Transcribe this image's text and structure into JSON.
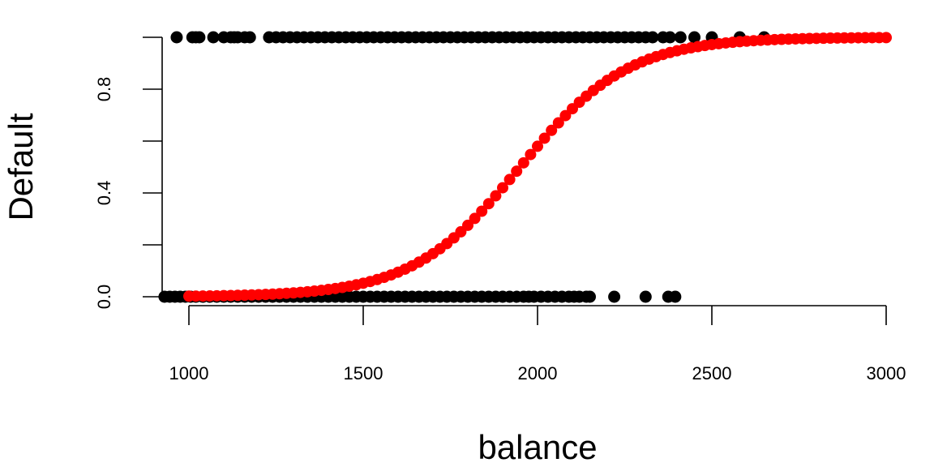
{
  "chart_data": {
    "type": "scatter",
    "xlabel": "balance",
    "ylabel": "Default",
    "xlim": [
      920,
      3010
    ],
    "ylim": [
      0,
      1
    ],
    "x_ticks": [
      1000,
      1500,
      2000,
      2500,
      3000
    ],
    "x_tick_labels": [
      "1000",
      "1500",
      "2000",
      "2500",
      "3000"
    ],
    "y_ticks": [
      0,
      0.2,
      0.4,
      0.6,
      0.8,
      1.0
    ],
    "y_tick_labels": [
      "0.0",
      "",
      "0.4",
      "",
      "0.8",
      ""
    ],
    "grid": false,
    "legend": "none",
    "series": [
      {
        "kind": "observations-default-1",
        "color": "#000000",
        "x": [
          965,
          1010,
          1020,
          1030,
          1070,
          1100,
          1120,
          1130,
          1140,
          1160,
          1175,
          1230,
          1250,
          1270,
          1290,
          1310,
          1330,
          1350,
          1370,
          1390,
          1410,
          1430,
          1450,
          1470,
          1490,
          1510,
          1530,
          1550,
          1570,
          1590,
          1610,
          1630,
          1650,
          1670,
          1690,
          1710,
          1730,
          1750,
          1770,
          1790,
          1810,
          1830,
          1850,
          1870,
          1890,
          1910,
          1930,
          1950,
          1970,
          1990,
          2010,
          2030,
          2050,
          2070,
          2090,
          2110,
          2130,
          2150,
          2170,
          2190,
          2210,
          2230,
          2250,
          2270,
          2290,
          2310,
          2330,
          2360,
          2380,
          2410,
          2450,
          2500,
          2580,
          2650
        ],
        "y": [
          1,
          1,
          1,
          1,
          1,
          1,
          1,
          1,
          1,
          1,
          1,
          1,
          1,
          1,
          1,
          1,
          1,
          1,
          1,
          1,
          1,
          1,
          1,
          1,
          1,
          1,
          1,
          1,
          1,
          1,
          1,
          1,
          1,
          1,
          1,
          1,
          1,
          1,
          1,
          1,
          1,
          1,
          1,
          1,
          1,
          1,
          1,
          1,
          1,
          1,
          1,
          1,
          1,
          1,
          1,
          1,
          1,
          1,
          1,
          1,
          1,
          1,
          1,
          1,
          1,
          1,
          1,
          1,
          1,
          1,
          1,
          1,
          1,
          1
        ]
      },
      {
        "kind": "observations-default-0",
        "color": "#000000",
        "x": [
          930,
          945,
          960,
          975,
          990,
          1005,
          1020,
          1040,
          1060,
          1080,
          1100,
          1120,
          1140,
          1160,
          1180,
          1200,
          1220,
          1240,
          1260,
          1280,
          1300,
          1320,
          1340,
          1360,
          1380,
          1400,
          1420,
          1440,
          1460,
          1480,
          1500,
          1520,
          1540,
          1560,
          1580,
          1600,
          1620,
          1640,
          1660,
          1680,
          1700,
          1720,
          1740,
          1760,
          1780,
          1800,
          1820,
          1840,
          1860,
          1880,
          1900,
          1920,
          1940,
          1960,
          1975,
          1990,
          2010,
          2030,
          2050,
          2070,
          2090,
          2105,
          2120,
          2140,
          2150,
          2220,
          2310,
          2375,
          2395
        ],
        "y": [
          0,
          0,
          0,
          0,
          0,
          0,
          0,
          0,
          0,
          0,
          0,
          0,
          0,
          0,
          0,
          0,
          0,
          0,
          0,
          0,
          0,
          0,
          0,
          0,
          0,
          0,
          0,
          0,
          0,
          0,
          0,
          0,
          0,
          0,
          0,
          0,
          0,
          0,
          0,
          0,
          0,
          0,
          0,
          0,
          0,
          0,
          0,
          0,
          0,
          0,
          0,
          0,
          0,
          0,
          0,
          0,
          0,
          0,
          0,
          0,
          0,
          0,
          0,
          0,
          0,
          0,
          0,
          0,
          0
        ]
      },
      {
        "kind": "fitted-probability",
        "color": "#ff0000",
        "curve": "logistic",
        "midpoint": 1950,
        "scale": 155,
        "x_start": 1000,
        "x_end": 3000,
        "x_step": 20
      }
    ]
  }
}
